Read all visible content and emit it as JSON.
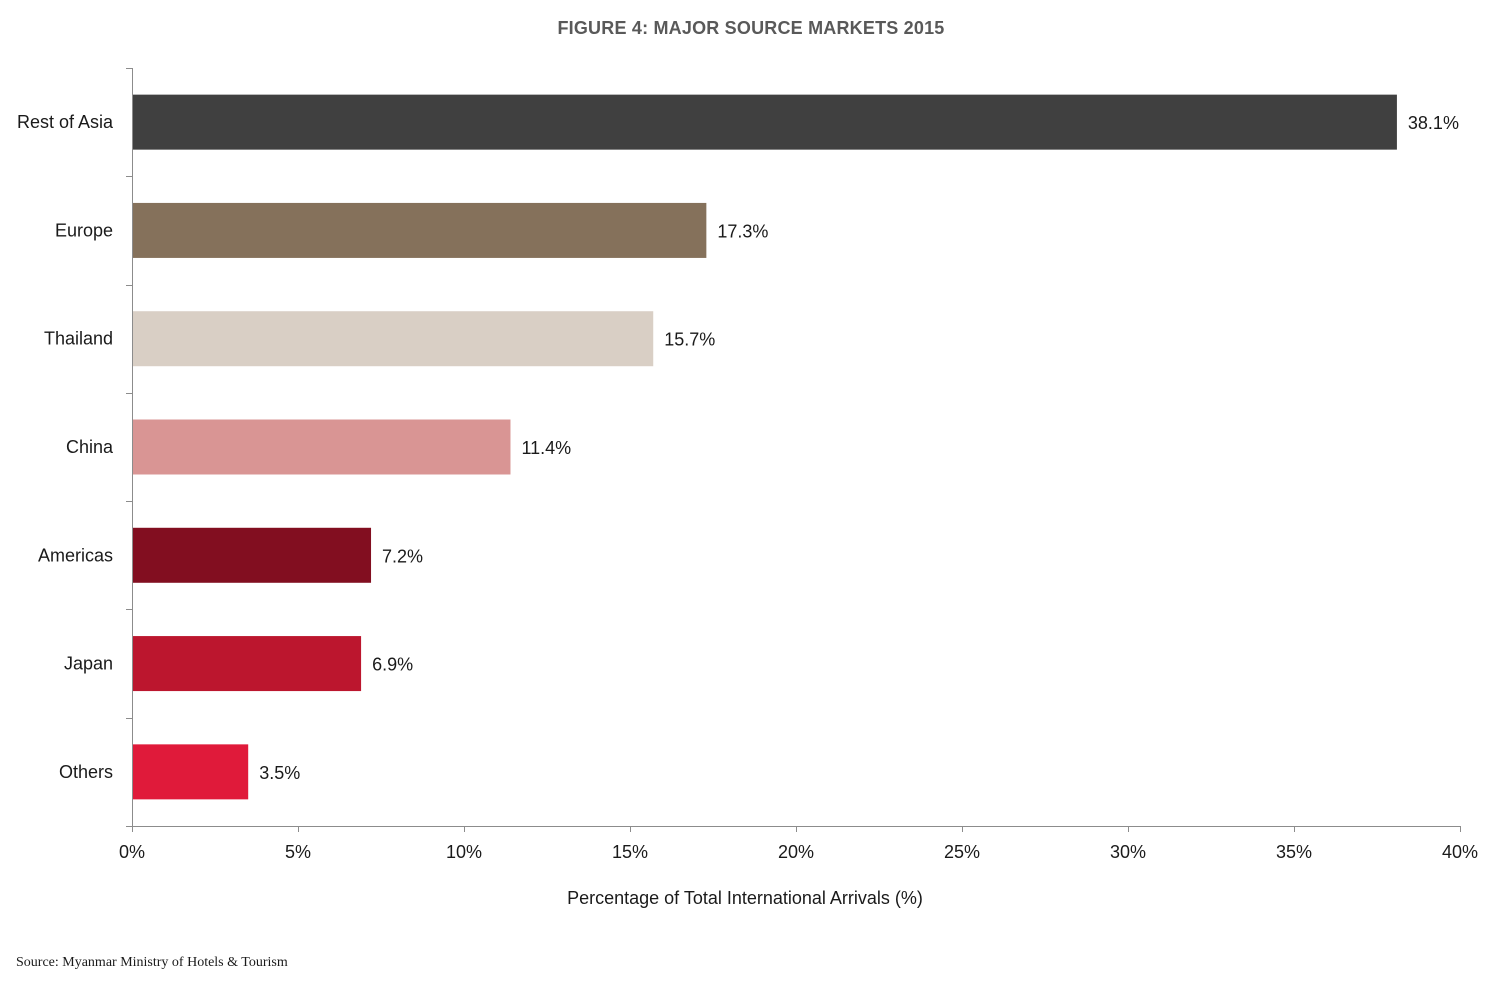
{
  "chart_data": {
    "type": "bar",
    "orientation": "horizontal",
    "title": "FIGURE 4: MAJOR SOURCE MARKETS 2015",
    "categories": [
      "Rest of Asia",
      "Europe",
      "Thailand",
      "China",
      "Americas",
      "Japan",
      "Others"
    ],
    "values": [
      38.1,
      17.3,
      15.7,
      11.4,
      7.2,
      6.9,
      3.5
    ],
    "value_labels": [
      "38.1%",
      "17.3%",
      "15.7%",
      "11.4%",
      "7.2%",
      "6.9%",
      "3.5%"
    ],
    "colors": [
      "#404040",
      "#85715B",
      "#D9CFC5",
      "#D99594",
      "#820E20",
      "#BC162E",
      "#E01A3A"
    ],
    "xlabel": "Percentage of Total International Arrivals (%)",
    "ylabel": "",
    "xlim": [
      0,
      40
    ],
    "xticks": [
      0,
      5,
      10,
      15,
      20,
      25,
      30,
      35,
      40
    ],
    "xtick_labels": [
      "0%",
      "5%",
      "10%",
      "15%",
      "20%",
      "25%",
      "30%",
      "35%",
      "40%"
    ],
    "grid": false,
    "legend": "none"
  },
  "source_note": "Source: Myanmar Ministry of Hotels & Tourism"
}
